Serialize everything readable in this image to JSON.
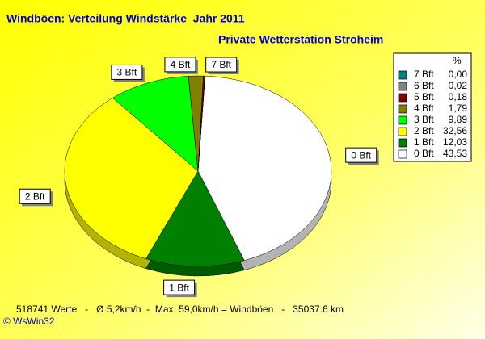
{
  "chart_data": {
    "type": "pie",
    "title": "Windböen: Verteilung Windstärke  Jahr 2011",
    "subtitle": "Private Wetterstation Stroheim",
    "legend_header": "%",
    "categories": [
      "7 Bft",
      "6 Bft",
      "5 Bft",
      "4 Bft",
      "3 Bft",
      "2 Bft",
      "1 Bft",
      "0 Bft"
    ],
    "values": [
      0.0,
      0.02,
      0.18,
      1.79,
      9.89,
      32.56,
      12.03,
      43.53
    ],
    "value_labels": [
      "0,00",
      "0,02",
      "0,18",
      "1,79",
      "9,89",
      "32,56",
      "12,03",
      "43,53"
    ],
    "colors": [
      "#008080",
      "#808080",
      "#800000",
      "#808000",
      "#00ff00",
      "#ffff00",
      "#008000",
      "#ffffff"
    ],
    "footer": "518741 Werte   -   Ø 5,2km/h  -  Max. 59,0km/h = Windböen   -   35037.6 km",
    "credit": "© WsWin32"
  }
}
